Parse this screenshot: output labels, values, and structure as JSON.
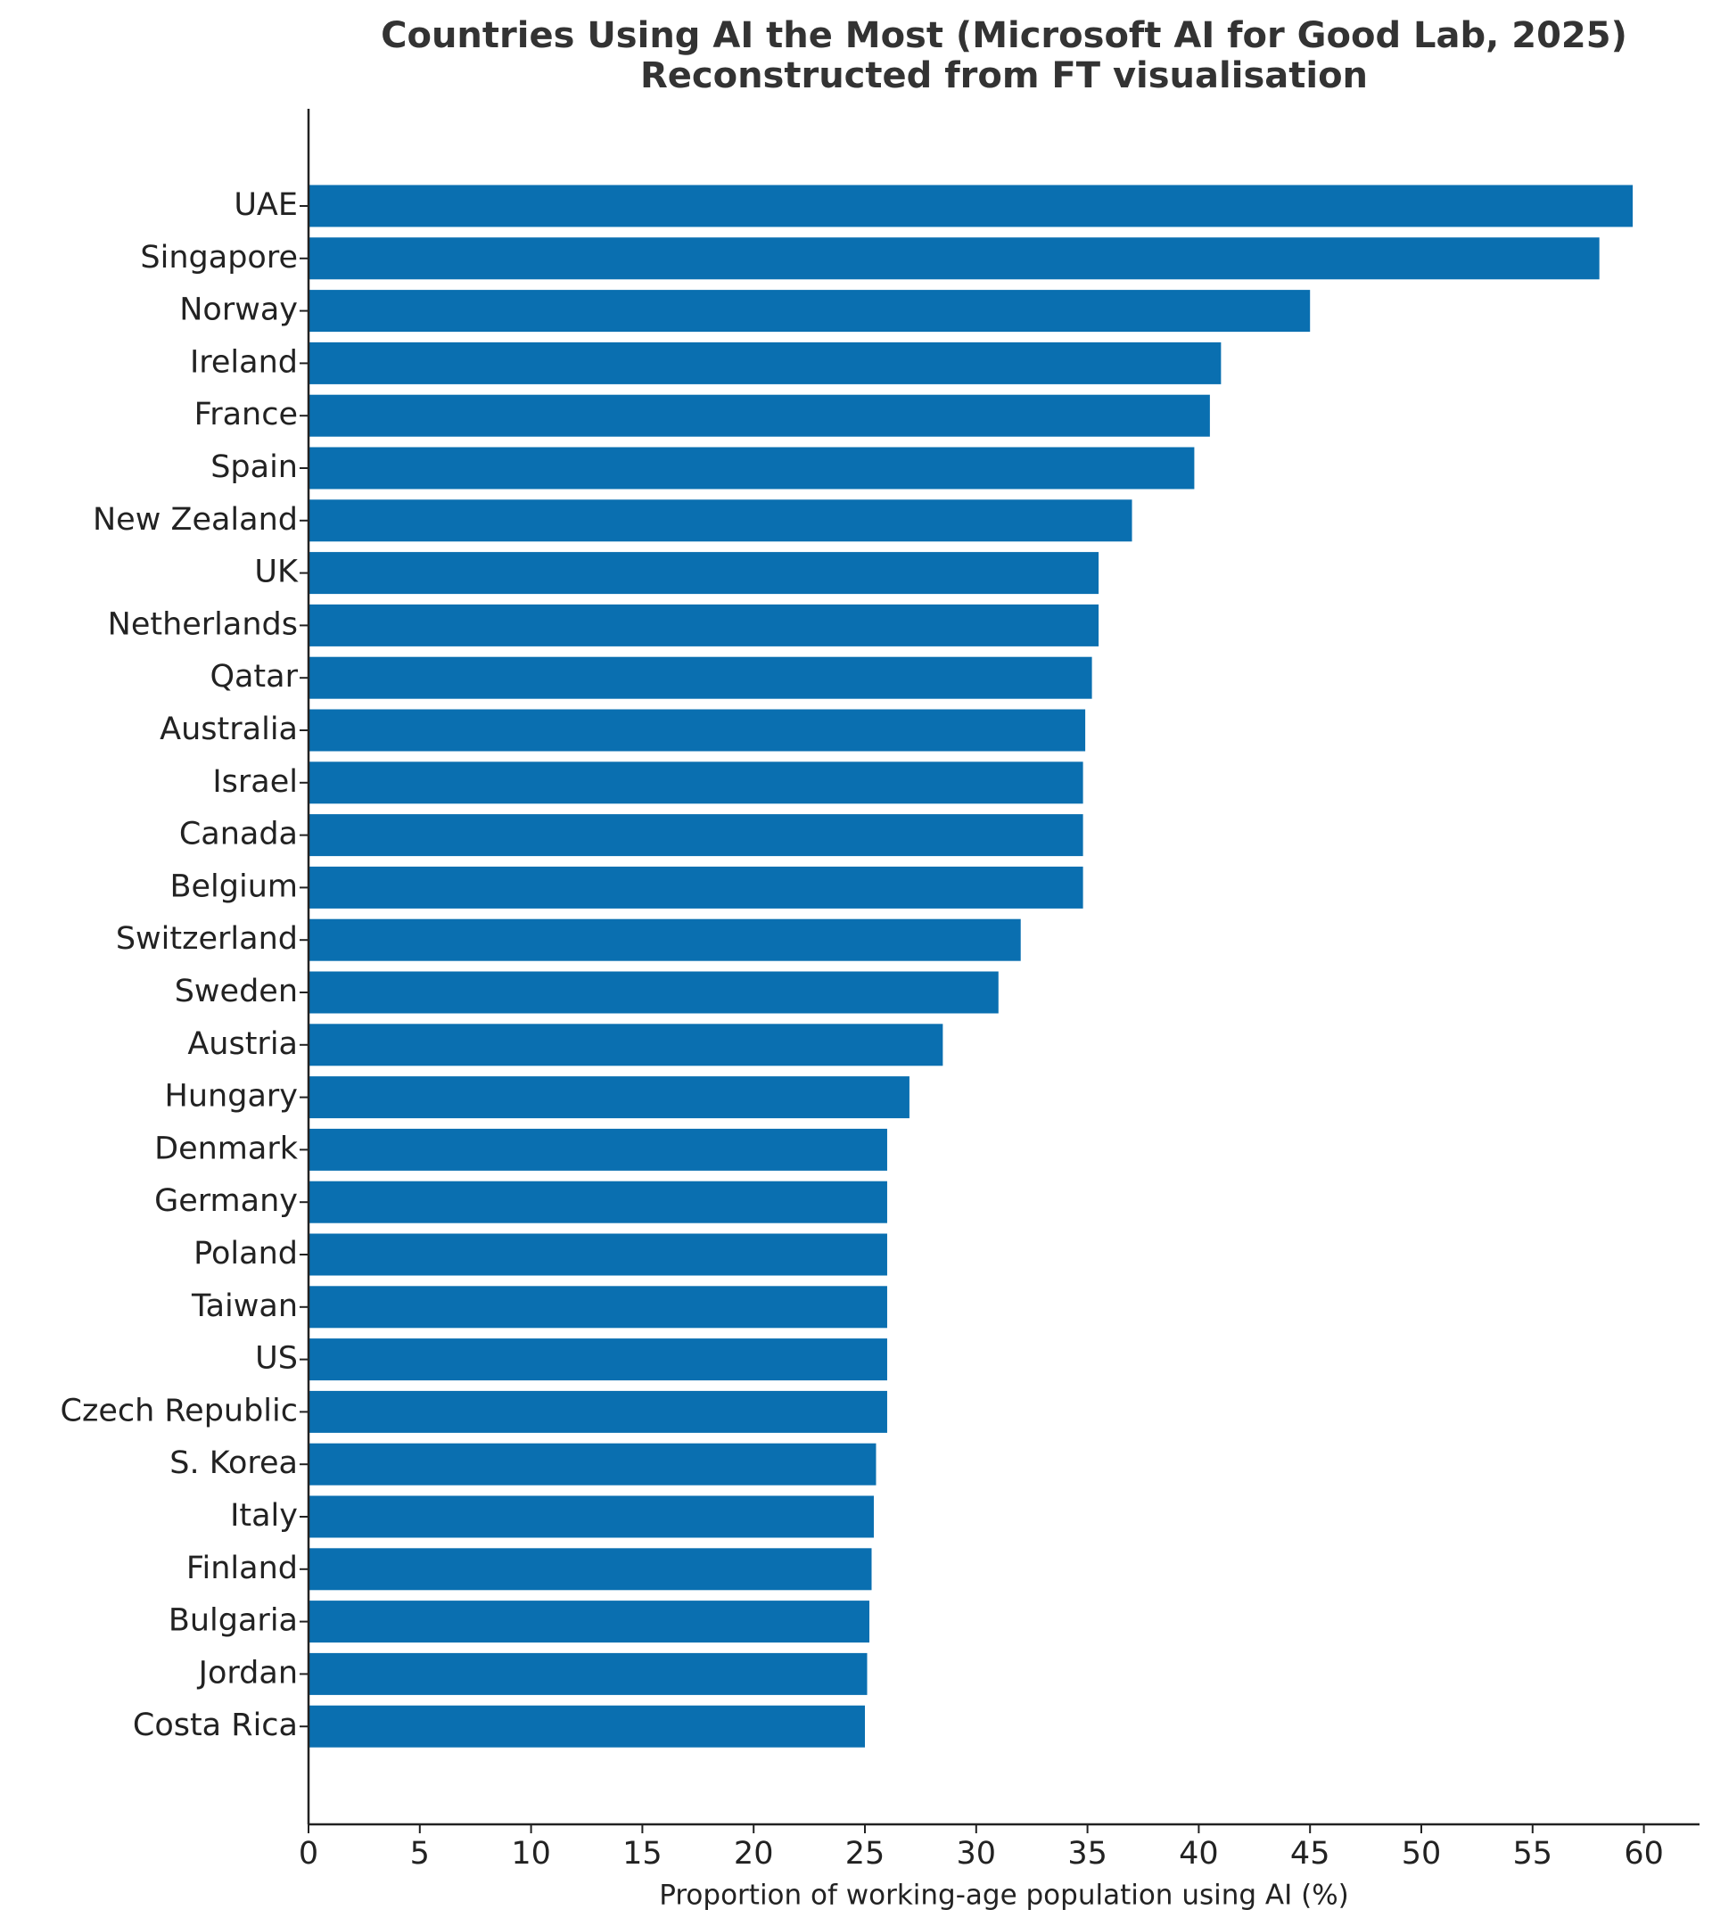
{
  "chart_data": {
    "type": "bar",
    "orientation": "horizontal",
    "title": "Countries Using AI the Most (Microsoft AI for Good Lab, 2025)",
    "subtitle": "Reconstructed from FT visualisation",
    "x_label": "Proportion of working-age population using AI (%)",
    "categories": [
      "UAE",
      "Singapore",
      "Norway",
      "Ireland",
      "France",
      "Spain",
      "New Zealand",
      "UK",
      "Netherlands",
      "Qatar",
      "Australia",
      "Israel",
      "Canada",
      "Belgium",
      "Switzerland",
      "Sweden",
      "Austria",
      "Hungary",
      "Denmark",
      "Germany",
      "Poland",
      "Taiwan",
      "US",
      "Czech Republic",
      "S. Korea",
      "Italy",
      "Finland",
      "Bulgaria",
      "Jordan",
      "Costa Rica"
    ],
    "values": [
      59.5,
      58.0,
      45.0,
      41.0,
      40.5,
      39.8,
      37.0,
      35.5,
      35.5,
      35.2,
      34.9,
      34.8,
      34.8,
      34.8,
      32.0,
      31.0,
      28.5,
      27.0,
      26.0,
      26.0,
      26.0,
      26.0,
      26.0,
      26.0,
      25.5,
      25.4,
      25.3,
      25.2,
      25.1,
      25.0
    ],
    "color": "#0a6fb0",
    "xlim": [
      0,
      62.5
    ],
    "xticks": [
      0,
      5,
      10,
      15,
      20,
      25,
      30,
      35,
      40,
      45,
      50,
      55,
      60
    ],
    "grid": false
  }
}
